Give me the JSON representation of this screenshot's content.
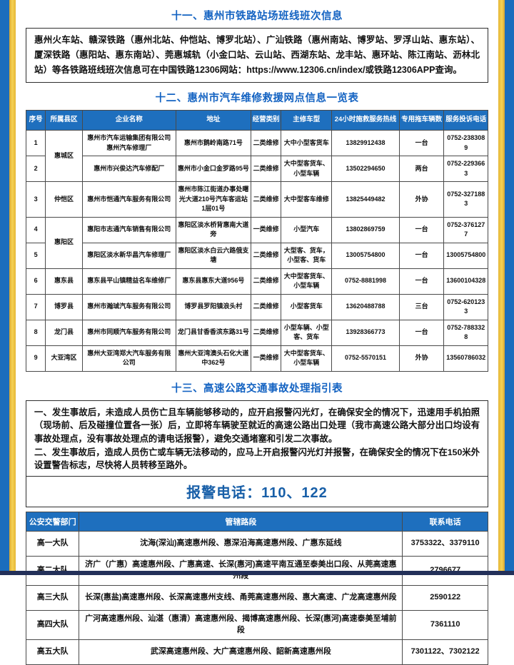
{
  "colors": {
    "title_blue": "#1463c2",
    "table_header_blue": "#1e6fbe",
    "side_stripe_blue": "#1b6dbd",
    "side_stripe_yellow": "#f0c13e",
    "bottom_bar_navy": "#233059",
    "alarm_text_blue": "#185fa8"
  },
  "section11": {
    "title": "十一、惠州市铁路站场班线班次信息",
    "intro": {
      "text_before": "惠州火车站、赣深铁路（惠州北站、仲恺站、博罗北站）、广汕铁路（惠州南站、博罗站、罗浮山站、惠东站）、厦深铁路（惠阳站、惠东南站）、莞惠城轨（小金口站、云山站、西湖东站、龙丰站、惠环站、陈江南站、沥林北站）等各铁路班线班次信息可在中国铁路12306网站：",
      "url": "https://www.12306.cn/index/",
      "text_after": "或铁路12306APP查询。"
    }
  },
  "section12": {
    "title": "十二、惠州市汽车维修救援网点信息一览表",
    "table": {
      "headers": [
        "序号",
        "所属县区",
        "企业名称",
        "地址",
        "经营类别",
        "主修车型",
        "24小时施救服务热线",
        "专用拖车辆数",
        "服务投诉电话"
      ],
      "col_widths": [
        "4.2%",
        "8%",
        "20.2%",
        "16.3%",
        "6.5%",
        "11%",
        "14.6%",
        "9.7%",
        "9.5%"
      ],
      "rows": [
        {
          "no": "1",
          "district": "惠城区",
          "dspan": 2,
          "name": "惠州市汽车运输集团有限公司惠州汽车修理厂",
          "addr": "惠州市鹅岭南路71号",
          "cat": "二类维修",
          "type": "大中小型客货车",
          "hotline": "13829912438",
          "trucks": "一台",
          "complaint": "0752-2383089"
        },
        {
          "no": "2",
          "name": "惠州市兴俊达汽车修配厂",
          "addr": "惠州市小金口金罗路95号",
          "cat": "二类维修",
          "type": "大中型客货车、小型车辆",
          "hotline": "13502294650",
          "trucks": "两台",
          "complaint": "0752-2293663"
        },
        {
          "no": "3",
          "district": "仲恺区",
          "dspan": 1,
          "name": "惠州市恺通汽车服务有限公司",
          "addr": "惠州市陈江街道办事处曙光大道210号汽车客运站1层01号",
          "cat": "二类维修",
          "type": "大中型客车维修",
          "hotline": "13825449482",
          "trucks": "外协",
          "complaint": "0752-3271883"
        },
        {
          "no": "4",
          "district": "惠阳区",
          "dspan": 2,
          "name": "惠阳市志通汽车销售有限公司",
          "addr": "惠阳区淡水桥背惠南大道旁",
          "cat": "一类维修",
          "type": "小型汽车",
          "hotline": "13802869759",
          "trucks": "一台",
          "complaint": "0752-3761277"
        },
        {
          "no": "5",
          "name": "惠阳区淡水新华昌汽车修理厂",
          "addr": "惠阳区淡水白云六路俄支塘",
          "cat": "二类维修",
          "type": "大型客、货车，小型客、货车",
          "hotline": "13005754800",
          "trucks": "一台",
          "complaint": "13005754800"
        },
        {
          "no": "6",
          "district": "惠东县",
          "dspan": 1,
          "name": "惠东县平山镇精益名车维修厂",
          "addr": "惠东县惠东大道956号",
          "cat": "二类维修",
          "type": "大中型客货车、小型车辆",
          "hotline": "0752-8881998",
          "trucks": "一台",
          "complaint": "13600104328"
        },
        {
          "no": "7",
          "district": "博罗县",
          "dspan": 1,
          "name": "惠州市瀚珹汽车服务有限公司",
          "addr": "博罗县罗阳镇浪头村",
          "cat": "二类维修",
          "type": "小型客货车",
          "hotline": "13620488788",
          "trucks": "三台",
          "complaint": "0752-6201233"
        },
        {
          "no": "8",
          "district": "龙门县",
          "dspan": 1,
          "name": "惠州市同顺汽车服务有限公司",
          "addr": "龙门县甘香香滨东路31号",
          "cat": "二类维修",
          "type": "小型车辆、小型客、货车",
          "hotline": "13928366773",
          "trucks": "一台",
          "complaint": "0752-7883328"
        },
        {
          "no": "9",
          "district": "大亚湾区",
          "dspan": 1,
          "name": "惠州大亚湾郑大汽车服务有限公司",
          "addr": "惠州大亚湾澳头石化大道中362号",
          "cat": "一类维修",
          "type": "大中型客货车、小型车辆",
          "hotline": "0752-5570151",
          "trucks": "外协",
          "complaint": "13560786032"
        }
      ]
    }
  },
  "section13": {
    "title": "十三、高速公路交通事故处理指引表",
    "item1": "一、发生事故后，未造成人员伤亡且车辆能够移动的，应开启报警闪光灯，在确保安全的情况下，迅速用手机拍照（现场前、后及碰撞位置各一张）后，立即将车辆驶至就近的高速公路出口处理（我市高速公路大部分出口均设有事故处理点，没有事故处理点的请电话报警），避免交通堵塞和引发二次事故。",
    "item2": "二、发生事故后，造成人员伤亡或车辆无法移动的，应马上开启报警闪光灯并报警，在确保安全的情况下在150米外设置警告标志，尽快将人员转移至路外。",
    "alarm": "报警电话：110、122",
    "table": {
      "headers": [
        "公安交警部门",
        "管辖路段",
        "联系电话"
      ],
      "col_widths": [
        "11.5%",
        "70%",
        "18.5%"
      ],
      "rows": [
        {
          "dept": "高一大队",
          "roads": "沈海(深汕)高速惠州段、惠深沿海高速惠州段、广惠东延线",
          "phone": "3753322、3379110"
        },
        {
          "dept": "高二大队",
          "roads": "济广（广惠）高速惠州段、广惠高速、长深(惠河)高速平南互通至泰美出口段、从莞高速惠州段",
          "phone": "2796677"
        },
        {
          "dept": "高三大队",
          "roads": "长深(惠盐)高速惠州段、长深高速惠州支线、甬莞高速惠州段、惠大高速、广龙高速惠州段",
          "phone": "2590122"
        },
        {
          "dept": "高四大队",
          "roads": "广河高速惠州段、汕湛（惠清）高速惠州段、揭博高速惠州段、长深(惠河)高速泰美至埔前段",
          "phone": "7361110"
        },
        {
          "dept": "高五大队",
          "roads": "武深高速惠州段、大广高速惠州段、韶新高速惠州段",
          "phone": "7301122、7302122"
        }
      ]
    }
  }
}
